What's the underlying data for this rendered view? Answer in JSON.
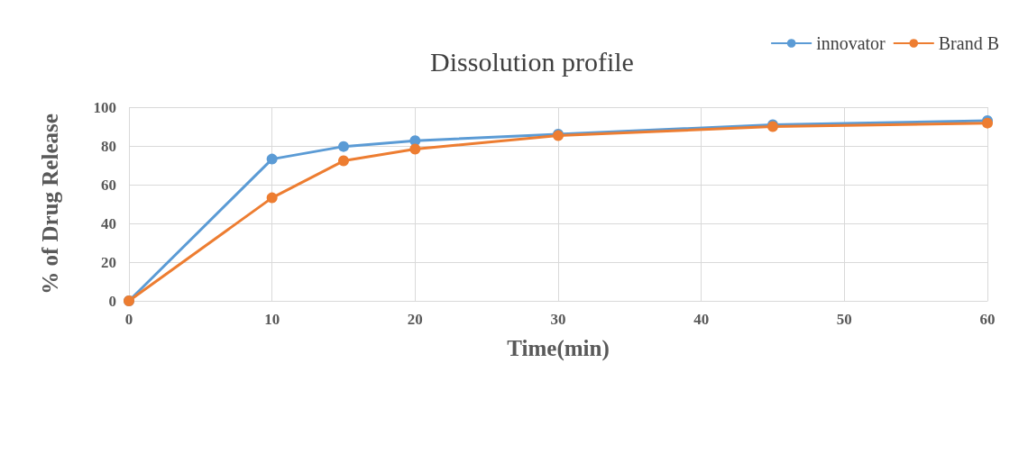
{
  "chart_data": {
    "type": "line",
    "title": "Dissolution profile",
    "xlabel": "Time(min)",
    "ylabel": "% of Drug Release",
    "x": [
      0,
      10,
      15,
      20,
      30,
      45,
      60
    ],
    "series": [
      {
        "name": "innovator",
        "color": "#5b9bd5",
        "values": [
          0,
          73.2,
          79.7,
          82.7,
          86.1,
          90.9,
          93
        ]
      },
      {
        "name": "Brand B",
        "color": "#ed7d31",
        "values": [
          0,
          53.2,
          72.3,
          78.4,
          85.3,
          90,
          91.8
        ]
      }
    ],
    "xlim": [
      0,
      60
    ],
    "xticks": [
      0,
      10,
      20,
      30,
      40,
      50,
      60
    ],
    "ylim": [
      0,
      100
    ],
    "yticks": [
      0,
      20,
      40,
      60,
      80,
      100
    ],
    "grid": true,
    "legend": "top right",
    "marker": "circle",
    "line_style": "solid"
  }
}
